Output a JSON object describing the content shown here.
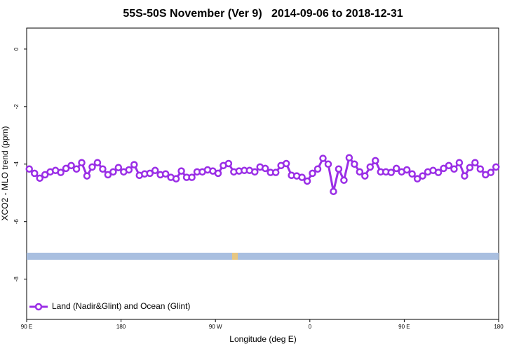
{
  "chart_data": {
    "type": "line",
    "title": "55S-50S November (Ver 9)   2014-09-06 to 2018-12-31",
    "xlabel": "Longitude (deg E)",
    "ylabel": "XCO2 - MLO trend (ppm)",
    "xlim": [
      90,
      540
    ],
    "ylim": [
      -9.4,
      0.73
    ],
    "xticks": [
      {
        "value": 90,
        "label": "90 E"
      },
      180,
      {
        "value": 270,
        "label": "90 W"
      },
      {
        "value": 360,
        "label": "0"
      },
      {
        "value": 450,
        "label": "90 E"
      },
      {
        "value": 540,
        "label": "180"
      }
    ],
    "yticks": [
      0,
      -2,
      -4,
      -6,
      -8
    ],
    "legend": "bottom-left",
    "x": [
      92.5,
      97.5,
      102.5,
      107.5,
      112.5,
      117.5,
      122.5,
      127.5,
      132.5,
      137.5,
      142.5,
      147.5,
      152.5,
      157.5,
      162.5,
      167.5,
      172.5,
      177.5,
      182.5,
      187.5,
      192.5,
      197.5,
      202.5,
      207.5,
      212.5,
      217.5,
      222.5,
      227.5,
      232.5,
      237.5,
      242.5,
      247.5,
      252.5,
      257.5,
      262.5,
      267.5,
      272.5,
      277.5,
      282.5,
      287.5,
      292.5,
      297.5,
      302.5,
      307.5,
      312.5,
      317.5,
      322.5,
      327.5,
      332.5,
      337.5,
      342.5,
      347.5,
      352.5,
      357.5,
      362.5,
      367.5,
      372.5,
      377.5,
      382.5,
      387.5,
      392.5,
      397.5,
      402.5,
      407.5,
      412.5,
      417.5,
      422.5,
      427.5,
      432.5,
      437.5,
      442.5,
      447.5,
      452.5,
      457.5,
      462.5,
      467.5,
      472.5,
      477.5,
      482.5,
      487.5,
      492.5,
      497.5,
      502.5,
      507.5,
      512.5,
      517.5,
      522.5,
      527.5,
      532.5,
      537.5
    ],
    "series": [
      {
        "name": "Land (Nadir&Glint) and Ocean (Glint)",
        "color": "#9a2ee6",
        "values": [
          -4.17,
          -4.32,
          -4.49,
          -4.37,
          -4.27,
          -4.22,
          -4.29,
          -4.15,
          -4.05,
          -4.17,
          -3.95,
          -4.41,
          -4.1,
          -3.95,
          -4.17,
          -4.37,
          -4.27,
          -4.12,
          -4.27,
          -4.2,
          -4.02,
          -4.39,
          -4.34,
          -4.32,
          -4.22,
          -4.37,
          -4.34,
          -4.46,
          -4.51,
          -4.24,
          -4.46,
          -4.46,
          -4.27,
          -4.27,
          -4.2,
          -4.24,
          -4.32,
          -4.05,
          -3.98,
          -4.27,
          -4.24,
          -4.22,
          -4.22,
          -4.27,
          -4.1,
          -4.15,
          -4.29,
          -4.29,
          -4.05,
          -3.98,
          -4.39,
          -4.41,
          -4.46,
          -4.59,
          -4.32,
          -4.17,
          -3.8,
          -4.0,
          -4.95,
          -4.17,
          -4.56,
          -3.78,
          -4.0,
          -4.27,
          -4.41,
          -4.1,
          -3.88,
          -4.27,
          -4.27,
          -4.29,
          -4.15,
          -4.27,
          -4.2,
          -4.34,
          -4.51,
          -4.41,
          -4.27,
          -4.22,
          -4.29,
          -4.15,
          -4.05,
          -4.17,
          -3.95,
          -4.41,
          -4.12,
          -3.95,
          -4.17,
          -4.37,
          -4.29,
          -4.1
        ]
      }
    ]
  }
}
